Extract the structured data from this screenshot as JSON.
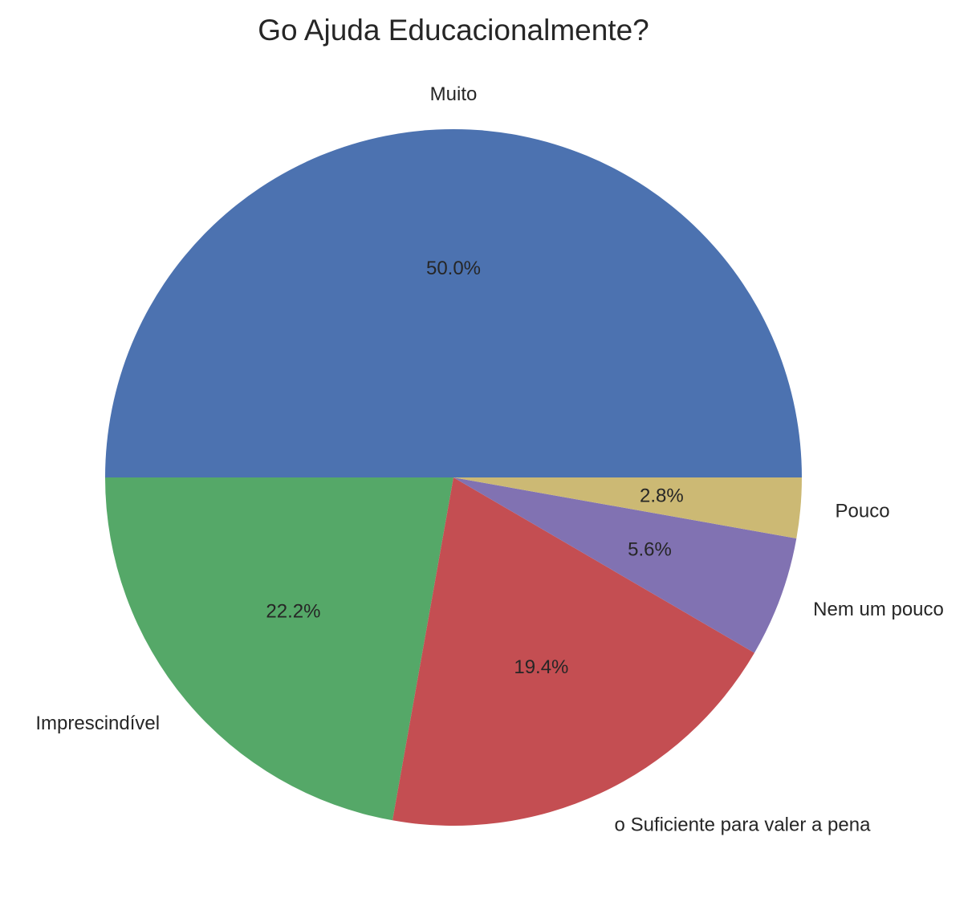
{
  "chart_data": {
    "type": "pie",
    "title": "Go Ajuda Educacionalmente?",
    "categories": [
      "Muito",
      "Imprescindível",
      "o Suficiente para valer a pena",
      "Nem um pouco",
      "Pouco"
    ],
    "values": [
      50.0,
      22.2,
      19.4,
      5.6,
      2.8
    ],
    "value_labels": [
      "50.0%",
      "22.2%",
      "19.4%",
      "5.6%",
      "2.8%"
    ],
    "colors": [
      "#4C72B0",
      "#55A868",
      "#C44E52",
      "#8172B2",
      "#CCB974"
    ],
    "start_angle": "0° (3 o'clock)",
    "direction": "counterclockwise",
    "legend": "none"
  }
}
